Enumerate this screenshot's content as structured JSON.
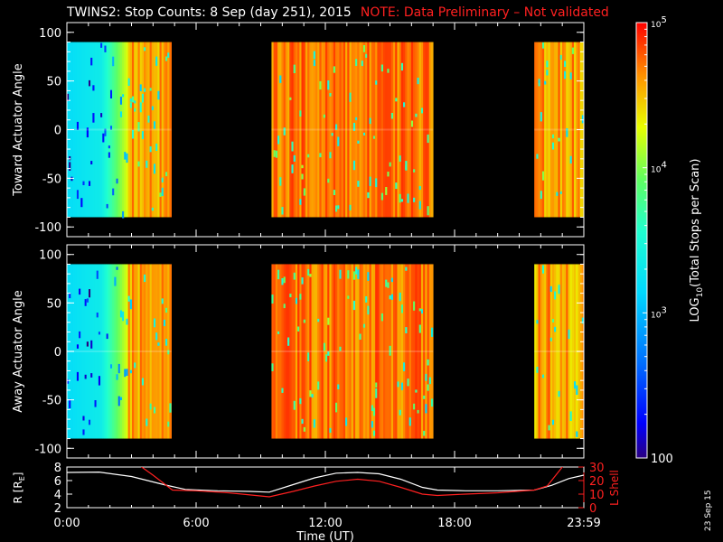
{
  "header": {
    "title": "TWINS2: Stop Counts:  8 Sep (day 251), 2015",
    "note": "NOTE: Data Preliminary – Not validated"
  },
  "footer": {
    "stamp": "23 Sep 15"
  },
  "chart_data": [
    {
      "type": "heatmap",
      "panel": "toward",
      "ylabel": "Toward Actuator Angle",
      "ylim": [
        -110,
        110
      ],
      "yticks": [
        100,
        50,
        0,
        -50,
        -100
      ],
      "xlim_hours": [
        0,
        24
      ],
      "data_angle_range": [
        -90,
        90
      ],
      "data_segments_hours": [
        [
          0.0,
          4.85
        ],
        [
          9.5,
          17.0
        ],
        [
          21.7,
          24.0
        ]
      ],
      "colorscale": "log",
      "dominant_level_by_segment": [
        "~10^3 (cyan) rising to ~10^5 (red) after 2:30 UT",
        "~10^4.5 to 10^5 (orange/red)",
        "~10^4 to 10^5 mixed"
      ]
    },
    {
      "type": "heatmap",
      "panel": "away",
      "ylabel": "Away Actuator Angle",
      "ylim": [
        -110,
        110
      ],
      "yticks": [
        100,
        50,
        0,
        -50,
        -100
      ],
      "xlim_hours": [
        0,
        24
      ],
      "data_angle_range": [
        -90,
        90
      ],
      "data_segments_hours": [
        [
          0.0,
          4.85
        ],
        [
          9.5,
          17.0
        ],
        [
          21.7,
          24.0
        ]
      ],
      "colorscale": "log"
    },
    {
      "type": "line",
      "panel": "orbit",
      "ylabel_left": "R (Rₑ)",
      "ylabel_left_parts": [
        "R [R",
        "E",
        "]"
      ],
      "ylabel_right": "L Shell",
      "left_yticks": [
        "8",
        "6",
        "4",
        "2"
      ],
      "right_yticks": [
        "30",
        "20",
        "10",
        "0"
      ],
      "xlabel": "Time (UT)",
      "xticks": [
        "0:00",
        "6:00",
        "12:00",
        "18:00",
        "23:59"
      ],
      "series": [
        {
          "color": "#ffffff",
          "axis": "R",
          "x_hours": [
            0,
            1.5,
            3,
            4.5,
            5.5,
            7,
            8.5,
            9.4,
            10.5,
            11.5,
            12.5,
            13.5,
            14.5,
            15.5,
            16.5,
            17.2,
            18.5,
            20,
            21.7,
            22.5,
            23.3,
            24
          ],
          "values": [
            7.2,
            7.25,
            6.6,
            5.4,
            4.7,
            4.5,
            4.4,
            4.3,
            5.4,
            6.4,
            7.1,
            7.2,
            7.0,
            6.2,
            5.0,
            4.6,
            4.5,
            4.5,
            4.6,
            5.3,
            6.3,
            6.8
          ]
        },
        {
          "color": "#ff2020",
          "axis": "L",
          "x_hours": [
            3.3,
            4.0,
            4.9,
            6,
            7.5,
            9.4,
            10.5,
            11.5,
            12.5,
            13.5,
            14.5,
            15.5,
            16.5,
            17.2,
            18.5,
            20,
            21.7,
            22.3,
            23.1
          ],
          "values": [
            32,
            24,
            13,
            12.5,
            11,
            8,
            12,
            16,
            19.5,
            21,
            19.5,
            15,
            10,
            9,
            10,
            11,
            13,
            16,
            32
          ]
        }
      ]
    }
  ],
  "colorbar": {
    "label": "LOG10(Total Stops per Scan)",
    "label_parts": [
      "LOG",
      "10",
      "(Total Stops per Scan)"
    ],
    "scale": "log",
    "range": [
      100,
      100000
    ],
    "ticks": [
      {
        "base": "10",
        "exp": "5",
        "value": 100000
      },
      {
        "base": "10",
        "exp": "4",
        "value": 10000
      },
      {
        "base": "10",
        "exp": "3",
        "value": 1000
      },
      {
        "base": "100",
        "exp": "",
        "value": 100
      }
    ]
  }
}
